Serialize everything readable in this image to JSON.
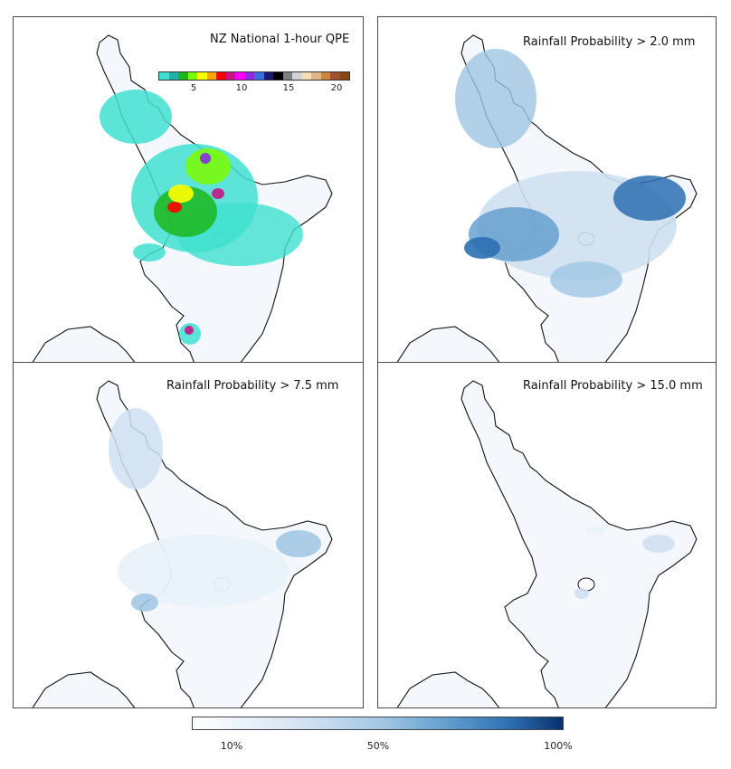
{
  "panels": {
    "qpe": {
      "title": "NZ National 1-hour QPE",
      "colorbar": {
        "ticks": [
          "5",
          "10",
          "15",
          "20"
        ],
        "colors": [
          "#40e0d0",
          "#20b2aa",
          "#1db71d",
          "#7cfc00",
          "#ffff00",
          "#ffa500",
          "#ff0000",
          "#c71585",
          "#ff00ff",
          "#8a2be2",
          "#4169e1",
          "#191970",
          "#000000",
          "#808080",
          "#d3d3d3",
          "#f5deb3",
          "#deb887",
          "#cd853f",
          "#a0522d",
          "#8b4513"
        ]
      }
    },
    "prob_2": {
      "title": "Rainfall Probability > 2.0 mm"
    },
    "prob_7": {
      "title": "Rainfall Probability > 7.5 mm"
    },
    "prob_15": {
      "title": "Rainfall Probability > 15.0 mm"
    }
  },
  "probability_colorbar": {
    "ticks": [
      "10%",
      "50%",
      "100%"
    ],
    "colors": [
      "#ffffff",
      "#cfe0f1",
      "#5e9bcd",
      "#08306b"
    ]
  }
}
